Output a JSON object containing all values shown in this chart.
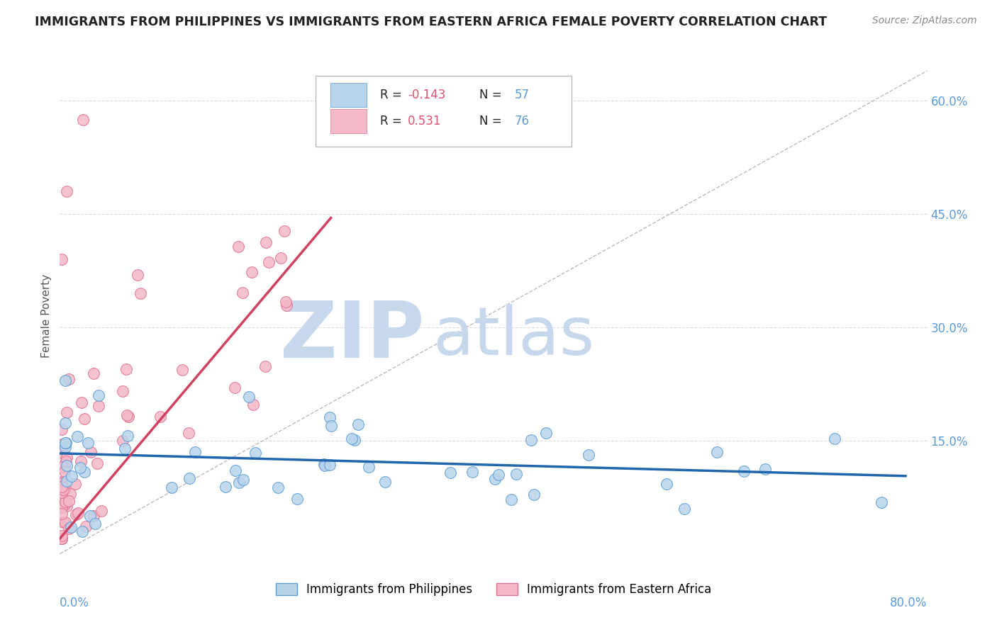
{
  "title": "IMMIGRANTS FROM PHILIPPINES VS IMMIGRANTS FROM EASTERN AFRICA FEMALE POVERTY CORRELATION CHART",
  "source_text": "Source: ZipAtlas.com",
  "ylabel": "Female Poverty",
  "xlim": [
    0.0,
    0.8
  ],
  "ylim": [
    -0.02,
    0.65
  ],
  "ytick_positions": [
    0.15,
    0.3,
    0.45,
    0.6
  ],
  "ytick_labels": [
    "15.0%",
    "30.0%",
    "45.0%",
    "60.0%"
  ],
  "xtick_positions": [
    0.0,
    0.2,
    0.4,
    0.6,
    0.8
  ],
  "series_phil": {
    "name": "Immigrants from Philippines",
    "color": "#b8d4ea",
    "edge_color": "#5b9bd5",
    "trend_color": "#2166ac",
    "R": -0.143,
    "N": 57
  },
  "series_africa": {
    "name": "Immigrants from Eastern Africa",
    "color": "#f4b8c8",
    "edge_color": "#e07090",
    "trend_color": "#d04060",
    "R": 0.531,
    "N": 76
  },
  "ref_line_color": "#bbbbbb",
  "title_color": "#222222",
  "title_fontsize": 12.5,
  "source_color": "#888888",
  "axis_label_color": "#5b9bd5",
  "watermark_zip_color": "#c8d8ec",
  "watermark_atlas_color": "#c8d8ec",
  "watermark_fontsize": 80,
  "background_color": "#ffffff",
  "grid_color": "#dddddd",
  "legend_R_color": "#e05070",
  "legend_N_color": "#5b9bd5",
  "legend_text_color": "#222222",
  "phil_trend_x0": 0.0,
  "phil_trend_y0": 0.133,
  "phil_trend_x1": 0.78,
  "phil_trend_y1": 0.103,
  "africa_trend_x0": 0.0,
  "africa_trend_y0": 0.02,
  "africa_trend_x1": 0.25,
  "africa_trend_y1": 0.445
}
